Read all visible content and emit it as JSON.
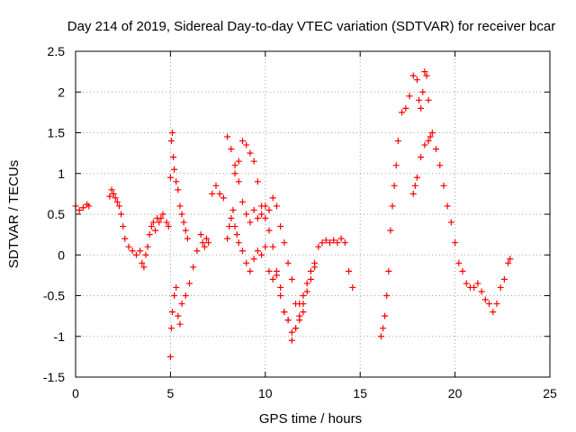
{
  "chart_data": {
    "type": "scatter",
    "title": "Day 214 of 2019, Sidereal Day-to-day VTEC variation (SDTVAR) for receiver bcar",
    "xlabel": "GPS time / hours",
    "ylabel": "SDTVAR / TECUs",
    "xlim": [
      0,
      25
    ],
    "ylim": [
      -1.5,
      2.5
    ],
    "xticks": [
      0,
      5,
      10,
      15,
      20,
      25
    ],
    "yticks": [
      -1.5,
      -1,
      -0.5,
      0,
      0.5,
      1,
      1.5,
      2,
      2.5
    ],
    "xtick_labels": [
      "0",
      "5",
      "10",
      "15",
      "20",
      "25"
    ],
    "ytick_labels": [
      "-1.5",
      "-1",
      "-0.5",
      "0",
      "0.5",
      "1",
      "1.5",
      "2",
      "2.5"
    ],
    "grid": true,
    "marker": "+",
    "color": "#ff0000",
    "series": [
      {
        "name": "SDTVAR",
        "x": [
          0.0,
          0.2,
          0.4,
          0.6,
          0.7,
          1.8,
          1.9,
          2.0,
          2.1,
          2.2,
          2.3,
          2.4,
          2.5,
          2.6,
          2.8,
          3.0,
          3.2,
          3.4,
          3.5,
          3.6,
          3.7,
          3.8,
          3.9,
          4.0,
          4.1,
          4.2,
          4.3,
          4.4,
          4.5,
          4.6,
          4.8,
          4.9,
          5.0,
          5.05,
          5.1,
          5.15,
          5.2,
          5.3,
          5.4,
          5.5,
          5.6,
          5.7,
          5.8,
          5.9,
          5.0,
          5.05,
          5.1,
          5.2,
          5.3,
          5.4,
          5.5,
          5.6,
          5.8,
          6.0,
          6.2,
          6.4,
          6.6,
          6.7,
          6.8,
          6.9,
          7.0,
          7.2,
          7.4,
          7.6,
          7.8,
          8.0,
          8.1,
          8.2,
          8.3,
          8.4,
          8.5,
          8.6,
          8.8,
          9.0,
          9.2,
          9.4,
          9.6,
          9.8,
          10.0,
          10.2,
          10.4,
          10.6,
          10.8,
          11.0,
          11.2,
          11.4,
          11.6,
          11.8,
          12.0,
          12.2,
          12.4,
          12.6,
          12.8,
          13.0,
          13.2,
          13.4,
          13.6,
          13.8,
          14.0,
          14.2,
          14.4,
          14.6,
          8.0,
          8.2,
          8.4,
          8.6,
          8.8,
          9.0,
          9.2,
          9.4,
          9.6,
          9.8,
          10.0,
          10.2,
          10.4,
          10.6,
          10.8,
          11.0,
          11.2,
          11.4,
          11.6,
          11.8,
          12.0,
          8.4,
          8.6,
          8.8,
          9.0,
          9.2,
          9.4,
          9.6,
          9.8,
          10.0,
          10.2,
          10.4,
          10.6,
          10.8,
          11.0,
          11.2,
          11.4,
          11.6,
          11.8,
          12.0,
          12.2,
          12.4,
          12.6,
          16.1,
          16.2,
          16.3,
          16.4,
          16.5,
          16.6,
          16.7,
          16.8,
          16.9,
          17.0,
          17.2,
          17.4,
          17.6,
          17.8,
          18.0,
          18.1,
          18.2,
          18.3,
          18.4,
          18.5,
          18.6,
          17.8,
          17.9,
          18.0,
          18.2,
          18.4,
          18.6,
          18.7,
          18.8,
          19.0,
          19.2,
          19.4,
          19.6,
          19.8,
          20.0,
          20.2,
          20.4,
          20.6,
          20.8,
          21.0,
          21.2,
          21.4,
          21.6,
          21.8,
          22.0,
          22.2,
          22.4,
          22.6,
          22.8,
          22.9
        ],
        "y": [
          0.6,
          0.55,
          0.58,
          0.62,
          0.6,
          0.72,
          0.8,
          0.75,
          0.7,
          0.65,
          0.6,
          0.5,
          0.35,
          0.2,
          0.1,
          0.05,
          0.0,
          0.05,
          -0.1,
          -0.15,
          0.0,
          0.1,
          0.25,
          0.35,
          0.4,
          0.3,
          0.45,
          0.4,
          0.45,
          0.5,
          0.4,
          0.35,
          0.95,
          1.4,
          1.5,
          1.2,
          1.05,
          0.9,
          0.8,
          0.6,
          0.5,
          0.4,
          0.3,
          0.2,
          -1.25,
          -0.9,
          -0.7,
          -0.5,
          -0.4,
          -0.75,
          -0.85,
          -0.6,
          -0.5,
          -0.35,
          -0.15,
          0.05,
          0.25,
          0.15,
          0.1,
          0.2,
          0.15,
          0.75,
          0.85,
          0.75,
          0.7,
          0.2,
          0.35,
          0.45,
          0.55,
          0.35,
          0.25,
          0.15,
          0.05,
          -0.1,
          -0.2,
          -0.05,
          0.05,
          0.0,
          0.1,
          -0.2,
          -0.3,
          -0.25,
          -0.4,
          -0.7,
          -0.8,
          -1.05,
          -0.9,
          -0.6,
          -0.5,
          -0.35,
          -0.2,
          -0.1,
          0.1,
          0.15,
          0.18,
          0.15,
          0.18,
          0.15,
          0.2,
          0.15,
          -0.2,
          -0.4,
          1.45,
          1.3,
          1.1,
          0.9,
          0.65,
          0.5,
          0.4,
          0.55,
          0.45,
          0.5,
          0.6,
          0.55,
          0.7,
          0.6,
          0.35,
          0.15,
          -0.1,
          -0.3,
          -0.6,
          -0.8,
          -0.7,
          1.0,
          1.15,
          1.4,
          1.35,
          1.25,
          1.15,
          0.9,
          0.6,
          0.45,
          0.3,
          0.1,
          -0.2,
          -0.5,
          -0.7,
          -0.8,
          -0.95,
          -0.9,
          -0.75,
          -0.6,
          -0.45,
          -0.3,
          -0.15,
          -1.0,
          -0.9,
          -0.75,
          -0.5,
          -0.2,
          0.3,
          0.6,
          0.85,
          1.1,
          1.4,
          1.75,
          1.8,
          1.95,
          2.2,
          2.15,
          1.9,
          1.8,
          2.0,
          2.25,
          2.2,
          1.9,
          0.75,
          0.85,
          0.95,
          1.2,
          1.35,
          1.4,
          1.45,
          1.5,
          1.3,
          1.1,
          0.85,
          0.6,
          0.4,
          0.15,
          -0.1,
          -0.2,
          -0.35,
          -0.4,
          -0.4,
          -0.35,
          -0.45,
          -0.55,
          -0.6,
          -0.7,
          -0.6,
          -0.4,
          -0.3,
          -0.1,
          -0.05
        ]
      }
    ]
  }
}
